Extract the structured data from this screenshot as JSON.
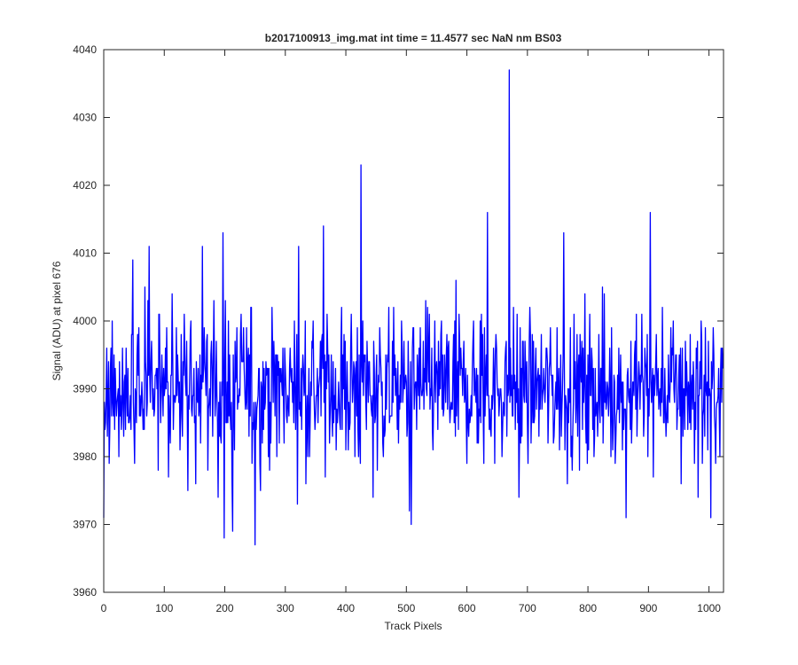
{
  "chart_data": {
    "type": "line",
    "title": "b2017100913_img.mat int time = 11.4577 sec  NaN nm BS03",
    "xlabel": "Track Pixels",
    "ylabel": "Signal (ADU) at pixel 676",
    "xlim": [
      0,
      1024
    ],
    "ylim": [
      3960,
      4040
    ],
    "xticks": [
      "0",
      "100",
      "200",
      "300",
      "400",
      "500",
      "600",
      "700",
      "800",
      "900",
      "1000"
    ],
    "yticks": [
      "3960",
      "3970",
      "3980",
      "3990",
      "4000",
      "4010",
      "4020",
      "4030",
      "4040"
    ],
    "grid": false,
    "series": [
      {
        "color": "#0000ff",
        "noise_mean": 3990,
        "noise_range": [
          3967,
          4011
        ],
        "notable_points": [
          {
            "x": 0,
            "y": 3971
          },
          {
            "x": 48,
            "y": 4009
          },
          {
            "x": 75,
            "y": 4011
          },
          {
            "x": 163,
            "y": 4011
          },
          {
            "x": 197,
            "y": 4013
          },
          {
            "x": 199,
            "y": 3968
          },
          {
            "x": 213,
            "y": 3969
          },
          {
            "x": 250,
            "y": 3967
          },
          {
            "x": 322,
            "y": 4011
          },
          {
            "x": 363,
            "y": 4014
          },
          {
            "x": 425,
            "y": 4023
          },
          {
            "x": 445,
            "y": 3974
          },
          {
            "x": 505,
            "y": 3972
          },
          {
            "x": 508,
            "y": 3970
          },
          {
            "x": 634,
            "y": 4016
          },
          {
            "x": 670,
            "y": 4037
          },
          {
            "x": 686,
            "y": 3974
          },
          {
            "x": 760,
            "y": 4013
          },
          {
            "x": 863,
            "y": 3971
          },
          {
            "x": 903,
            "y": 4016
          },
          {
            "x": 1003,
            "y": 3971
          }
        ]
      }
    ]
  }
}
